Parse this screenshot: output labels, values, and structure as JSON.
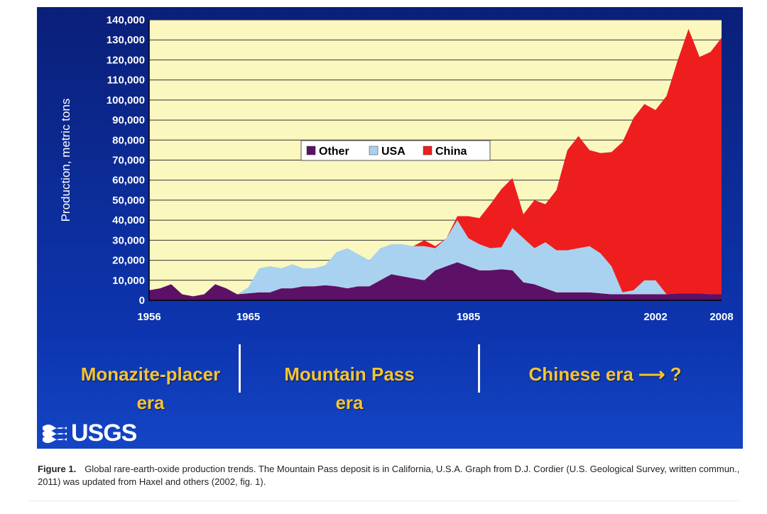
{
  "chart_data": {
    "type": "area",
    "stacked": true,
    "ylabel": "Production, metric tons",
    "xlabel": "",
    "ylim": [
      0,
      140000
    ],
    "xlim": [
      1956,
      2008
    ],
    "y_ticks": [
      "0",
      "10,000",
      "20,000",
      "30,000",
      "40,000",
      "50,000",
      "60,000",
      "70,000",
      "80,000",
      "90,000",
      "100,000",
      "110,000",
      "120,000",
      "130,000",
      "140,000"
    ],
    "x_ticks": [
      "1956",
      "1965",
      "1985",
      "2002",
      "2008"
    ],
    "x_tick_values": [
      1956,
      1965,
      1985,
      2002,
      2008
    ],
    "grid": true,
    "legend_position": "top-center",
    "x": [
      1956,
      1957,
      1958,
      1959,
      1960,
      1961,
      1962,
      1963,
      1964,
      1965,
      1966,
      1967,
      1968,
      1969,
      1970,
      1971,
      1972,
      1973,
      1974,
      1975,
      1976,
      1977,
      1978,
      1979,
      1980,
      1981,
      1982,
      1983,
      1984,
      1985,
      1986,
      1987,
      1988,
      1989,
      1990,
      1991,
      1992,
      1993,
      1994,
      1995,
      1996,
      1997,
      1998,
      1999,
      2000,
      2001,
      2002,
      2003,
      2004,
      2005,
      2006,
      2007,
      2008
    ],
    "series": [
      {
        "name": "Other",
        "color": "#5c1166",
        "values": [
          5000,
          6000,
          8000,
          3000,
          2000,
          3000,
          8000,
          6000,
          3000,
          3500,
          4000,
          4000,
          6000,
          6000,
          7000,
          7000,
          7500,
          7000,
          6000,
          7000,
          7000,
          10000,
          13000,
          12000,
          11000,
          10000,
          15000,
          17000,
          19000,
          17000,
          15000,
          15000,
          15500,
          15000,
          9000,
          8000,
          6000,
          4000,
          4000,
          4000,
          4000,
          3500,
          3000,
          3000,
          3000,
          3000,
          3000,
          3000,
          3500,
          3500,
          3500,
          3000,
          3000
        ]
      },
      {
        "name": "USA",
        "color": "#a9d2f0",
        "values": [
          0,
          0,
          0,
          0,
          0,
          0,
          0,
          0,
          0,
          3000,
          12000,
          13000,
          10000,
          12000,
          9000,
          9000,
          10000,
          17000,
          20000,
          16000,
          13000,
          16000,
          15000,
          16000,
          16000,
          17000,
          11000,
          14000,
          21000,
          14000,
          13000,
          11000,
          11000,
          21000,
          22000,
          18000,
          23000,
          21000,
          21000,
          22000,
          23000,
          20000,
          14000,
          1000,
          2000,
          7000,
          7000,
          0,
          0,
          0,
          0,
          0,
          0
        ]
      },
      {
        "name": "China",
        "color": "#ee1e1e",
        "values": [
          0,
          0,
          0,
          0,
          0,
          0,
          0,
          0,
          0,
          0,
          0,
          0,
          0,
          0,
          0,
          0,
          0,
          0,
          0,
          0,
          0,
          0,
          0,
          0,
          0,
          3000,
          1000,
          0,
          2000,
          11000,
          13000,
          22000,
          29000,
          25000,
          12000,
          24000,
          19000,
          30000,
          50000,
          56000,
          48000,
          50000,
          57000,
          75000,
          86000,
          88000,
          85000,
          99000,
          116000,
          132000,
          118000,
          121000,
          128000
        ]
      }
    ]
  },
  "eras": [
    {
      "line1": "Monazite-placer",
      "line2": "era"
    },
    {
      "line1": "Mountain Pass",
      "line2": "era"
    },
    {
      "line1": "Chinese era ⟶  ?",
      "line2": ""
    }
  ],
  "logo_text": "USGS",
  "caption": {
    "label": "Figure 1.",
    "text": "Global rare-earth-oxide production trends. The Mountain Pass deposit is in California, U.S.A. Graph from D.J. Cordier (U.S. Geological Survey, written commun., 2011) was updated from Haxel and others (2002, fig. 1)."
  },
  "colors": {
    "plot_background": "#fbf8bf",
    "other": "#5c1166",
    "usa": "#a9d2f0",
    "china": "#ee1e1e",
    "era_text": "#f5c531"
  }
}
